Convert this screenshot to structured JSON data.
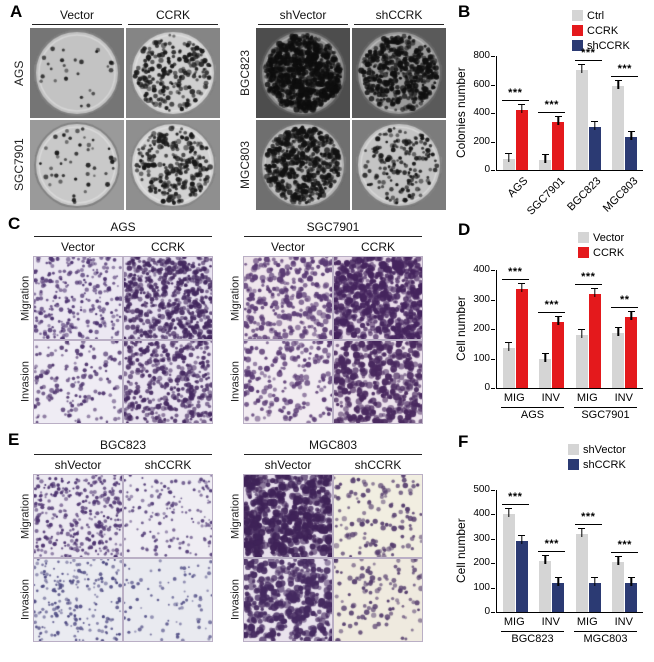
{
  "panels": {
    "a": {
      "letter": "A",
      "groups": [
        {
          "cols": [
            "Vector",
            "CCRK"
          ],
          "rows": [
            "AGS",
            "SGC7901"
          ]
        },
        {
          "cols": [
            "shVector",
            "shCCRK"
          ],
          "rows": [
            "BGC823",
            "MGC803"
          ]
        }
      ]
    },
    "b": {
      "letter": "B"
    },
    "c": {
      "letter": "C",
      "rows": [
        "Migration",
        "Invasion"
      ],
      "groups": [
        {
          "title": "AGS",
          "cols": [
            "Vector",
            "CCRK"
          ]
        },
        {
          "title": "SGC7901",
          "cols": [
            "Vector",
            "CCRK"
          ]
        }
      ]
    },
    "d": {
      "letter": "D"
    },
    "e": {
      "letter": "E",
      "rows": [
        "Migration",
        "Invasion"
      ],
      "groups": [
        {
          "title": "BGC823",
          "cols": [
            "shVector",
            "shCCRK"
          ]
        },
        {
          "title": "MGC803",
          "cols": [
            "shVector",
            "shCCRK"
          ]
        }
      ]
    },
    "f": {
      "letter": "F"
    }
  },
  "colors": {
    "ctrl_gray": "#d5d5d5",
    "ccrk_red": "#e4191c",
    "shccrk_navy": "#2b3a73"
  },
  "chart_data": [
    {
      "id": "B",
      "type": "bar",
      "title": "",
      "ylabel": "Colonies number",
      "categories": [
        "AGS",
        "SGC7901",
        "BGC823",
        "MGC803"
      ],
      "xtick_rotation": -45,
      "series": [
        {
          "name": "Ctrl",
          "color": "#d5d5d5",
          "values": [
            80,
            70,
            700,
            590
          ]
        },
        {
          "name": "CCRK",
          "color": "#e4191c",
          "values": [
            420,
            340,
            null,
            null
          ]
        },
        {
          "name": "shCCRK",
          "color": "#2b3a73",
          "values": [
            null,
            null,
            300,
            230
          ]
        }
      ],
      "ylim": [
        0,
        800
      ],
      "yticks": [
        0,
        200,
        400,
        600,
        800
      ],
      "significance": [
        "***",
        "***",
        "***",
        "***"
      ],
      "legend_position": "top-right",
      "grid": false
    },
    {
      "id": "D",
      "type": "bar",
      "title": "",
      "ylabel": "Cell number",
      "categories": [
        "MIG",
        "INV",
        "MIG",
        "INV"
      ],
      "series": [
        {
          "name": "Vector",
          "color": "#d5d5d5",
          "values": [
            135,
            100,
            180,
            185
          ]
        },
        {
          "name": "CCRK",
          "color": "#e4191c",
          "values": [
            335,
            225,
            320,
            240
          ]
        }
      ],
      "ylim": [
        0,
        400
      ],
      "yticks": [
        0,
        100,
        200,
        300,
        400
      ],
      "significance": [
        "***",
        "***",
        "***",
        "**"
      ],
      "groups": [
        {
          "label": "AGS",
          "span": [
            0,
            1
          ]
        },
        {
          "label": "SGC7901",
          "span": [
            2,
            3
          ]
        }
      ],
      "legend_position": "top-right",
      "grid": false
    },
    {
      "id": "F",
      "type": "bar",
      "title": "",
      "ylabel": "Cell number",
      "categories": [
        "MIG",
        "INV",
        "MIG",
        "INV"
      ],
      "series": [
        {
          "name": "shVector",
          "color": "#d5d5d5",
          "values": [
            400,
            210,
            320,
            205
          ]
        },
        {
          "name": "shCCRK",
          "color": "#2b3a73",
          "values": [
            290,
            120,
            120,
            120
          ]
        }
      ],
      "ylim": [
        0,
        500
      ],
      "yticks": [
        0,
        100,
        200,
        300,
        400,
        500
      ],
      "significance": [
        "***",
        "***",
        "***",
        "***"
      ],
      "groups": [
        {
          "label": "BGC823",
          "span": [
            0,
            1
          ]
        },
        {
          "label": "MGC803",
          "span": [
            2,
            3
          ]
        }
      ],
      "legend_position": "top-right",
      "grid": false
    }
  ]
}
